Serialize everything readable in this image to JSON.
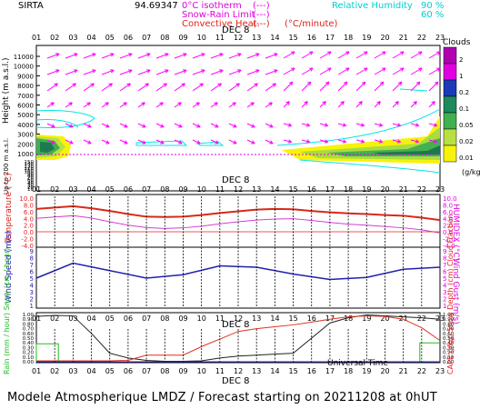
{
  "header": {
    "station": "SIRTA",
    "coords": "94.69347",
    "legend_isotherm": "0°C isotherm",
    "legend_snow_rain": "Snow-Rain Limit",
    "legend_convective": "Convective Heat.",
    "legend_rate": "(°C/minute)",
    "dash_box": "(---)",
    "rh_label": "Relative Humidity",
    "rh_90": "90 %",
    "rh_60": "60 %"
  },
  "time_axis": {
    "hours": [
      "01",
      "02",
      "03",
      "04",
      "05",
      "06",
      "07",
      "08",
      "09",
      "10",
      "11",
      "12",
      "13",
      "14",
      "15",
      "16",
      "17",
      "18",
      "19",
      "20",
      "21",
      "22",
      "23"
    ],
    "date_label": "DEC  8",
    "bottom_label": "Universal Time"
  },
  "colors": {
    "temperature": "#d62a1a",
    "humidex": "#d040d0",
    "wind": "#2020b0",
    "rh": "#00e5e5",
    "arrows": "#ff00ff",
    "rain": "#22bb22",
    "snow": "#3333cc",
    "cloud_fraction": "#222222",
    "cape": "#e03020"
  },
  "panel1": {
    "ylabel": "Height (m a.s.l.)",
    "ylabel_low": "Up to 200 m a.s.l.",
    "yticks_upper": [
      "11000",
      "10000",
      "9000",
      "8000",
      "7000",
      "6000",
      "5000",
      "4000",
      "3000",
      "2000",
      "1000"
    ],
    "yticks_lower": [
      "150",
      "140",
      "130",
      "120",
      "110",
      "100",
      "90",
      "80",
      "70",
      "60",
      "50",
      "40",
      "30",
      "20",
      "10"
    ],
    "clouds_title": "Clouds",
    "clouds_unit": "(g/kg)",
    "clouds_scale": [
      "2",
      "1",
      "0.2",
      "0.1",
      "0.05",
      "0.02",
      "0.01"
    ]
  },
  "panel2": {
    "ylabel": "Temperature (°C)",
    "ylabel_right": "HUMIDEX (°C)",
    "yticks": [
      "10.0",
      "8.0",
      "6.0",
      "4.0",
      "2.0",
      "0.0",
      "-2.0",
      "-4.0"
    ]
  },
  "panel3": {
    "ylabel": "Wind Speed (m/s)",
    "ylabel_right": "Wind Gust (m/s)",
    "yticks": [
      "9",
      "8",
      "7",
      "6",
      "5",
      "4",
      "3",
      "2",
      "1"
    ]
  },
  "panel4": {
    "ylabel_left": "Rain (mm / hour) Snow (cm / hour)",
    "ylabel_right": "CAPE (J/kg) Snow Depth (cm) Cloud Fraction",
    "yticks": [
      "1.00",
      "0.90",
      "0.80",
      "0.70",
      "0.60",
      "0.50",
      "0.40",
      "0.30",
      "0.20",
      "0.10",
      "0.00"
    ]
  },
  "footer": "Modele Atmospherique LMDZ / Forecast starting on 20211208 at 0hUT",
  "chart_data": [
    {
      "type": "line",
      "panel": "temperature",
      "xlabel": "Universal Time",
      "ylabel": "Temperature (°C)",
      "ylim": [
        -4,
        10
      ],
      "x": [
        1,
        2,
        3,
        4,
        5,
        6,
        7,
        8,
        9,
        10,
        11,
        12,
        13,
        14,
        15,
        16,
        17,
        18,
        19,
        20,
        21,
        22,
        23
      ],
      "series": [
        {
          "name": "Temperature",
          "values": [
            6.8,
            7.2,
            7.6,
            7.0,
            6.2,
            5.3,
            4.5,
            4.4,
            4.5,
            5.0,
            5.6,
            6.1,
            6.6,
            6.8,
            6.7,
            6.2,
            5.8,
            5.5,
            5.3,
            5.0,
            4.8,
            4.2,
            3.5
          ]
        },
        {
          "name": "HUMIDEX",
          "values": [
            4.0,
            4.4,
            4.8,
            4.1,
            3.0,
            2.0,
            1.3,
            1.0,
            1.2,
            1.7,
            2.4,
            3.0,
            3.5,
            3.8,
            3.9,
            3.4,
            2.8,
            2.3,
            2.0,
            1.6,
            1.2,
            0.6,
            -0.3
          ]
        }
      ]
    },
    {
      "type": "line",
      "panel": "wind",
      "ylabel": "Wind Speed (m/s)",
      "ylim": [
        1,
        9
      ],
      "x": [
        1,
        3,
        5,
        7,
        9,
        11,
        13,
        15,
        17,
        19,
        21,
        23
      ],
      "series": [
        {
          "name": "Wind Speed",
          "values": [
            5.0,
            7.2,
            6.1,
            5.0,
            5.5,
            6.8,
            6.6,
            5.6,
            4.8,
            5.1,
            6.3,
            6.6
          ]
        }
      ]
    },
    {
      "type": "line",
      "panel": "precip",
      "ylim": [
        0,
        1
      ],
      "x": [
        1,
        2,
        3,
        4,
        5,
        6,
        7,
        8,
        9,
        10,
        11,
        12,
        13,
        14,
        15,
        16,
        17,
        18,
        19,
        20,
        21,
        22,
        23
      ],
      "series": [
        {
          "name": "Cloud Fraction",
          "values": [
            0.96,
            0.98,
            0.97,
            0.6,
            0.18,
            0.08,
            0.03,
            0.01,
            0.01,
            0.02,
            0.08,
            0.12,
            0.14,
            0.16,
            0.18,
            0.5,
            0.82,
            0.93,
            0.99,
            0.97,
            0.95,
            0.93,
            0.9
          ]
        },
        {
          "name": "CAPE",
          "values": [
            0.02,
            0.02,
            0.02,
            0.02,
            0.02,
            0.03,
            0.14,
            0.14,
            0.14,
            0.32,
            0.48,
            0.64,
            0.7,
            0.74,
            0.78,
            0.84,
            0.9,
            0.95,
            0.97,
            0.96,
            0.9,
            0.72,
            0.45
          ]
        },
        {
          "name": "Rain",
          "values": [
            0.38,
            0.38,
            0,
            0,
            0,
            0,
            0,
            0,
            0,
            0,
            0,
            0,
            0,
            0,
            0,
            0,
            0,
            0,
            0,
            0,
            0,
            0.4,
            0.4
          ]
        }
      ]
    }
  ]
}
